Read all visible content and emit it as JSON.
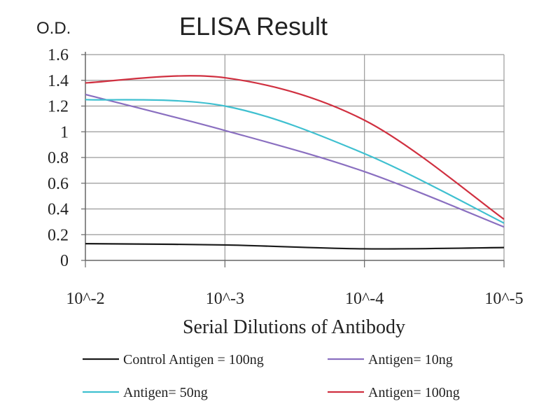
{
  "chart_data": {
    "type": "line",
    "title": "ELISA Result",
    "ylabel": "O.D.",
    "xlabel": "Serial Dilutions of Antibody",
    "categories": [
      "10^-2",
      "10^-3",
      "10^-4",
      "10^-5"
    ],
    "y_ticks": [
      "0",
      "0.2",
      "0.4",
      "0.6",
      "0.8",
      "1",
      "1.2",
      "1.4",
      "1.6"
    ],
    "ylim": [
      0,
      1.6
    ],
    "grid": true,
    "legend_position": "bottom",
    "series": [
      {
        "name": "Control Antigen = 100ng",
        "color": "#1a1a1a",
        "values": [
          0.13,
          0.12,
          0.09,
          0.1
        ]
      },
      {
        "name": "Antigen= 10ng",
        "color": "#8a6fc0",
        "values": [
          1.29,
          1.01,
          0.69,
          0.26
        ]
      },
      {
        "name": "Antigen= 50ng",
        "color": "#3fc0d0",
        "values": [
          1.25,
          1.2,
          0.83,
          0.29
        ]
      },
      {
        "name": "Antigen= 100ng",
        "color": "#d03040",
        "values": [
          1.38,
          1.42,
          1.09,
          0.32
        ]
      }
    ]
  }
}
